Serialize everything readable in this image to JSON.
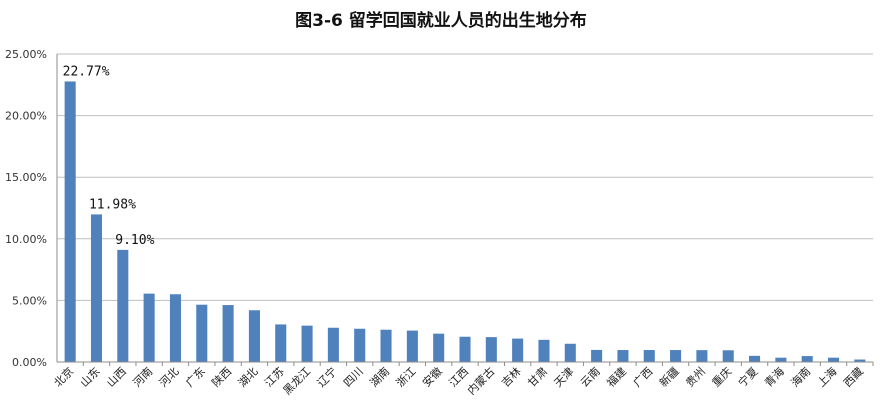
{
  "chart_data": {
    "type": "bar",
    "title": "图3-6 留学回国就业人员的出生地分布",
    "xlabel": "",
    "ylabel": "",
    "ylim": [
      0,
      0.25
    ],
    "ytick_values": [
      0,
      0.05,
      0.1,
      0.15,
      0.2,
      0.25
    ],
    "ytick_labels": [
      "0.00%",
      "5.00%",
      "10.00%",
      "15.00%",
      "20.00%",
      "25.00%"
    ],
    "grid": true,
    "legend": "none",
    "bar_color": "#4f81bd",
    "categories": [
      "北京",
      "山东",
      "山西",
      "河南",
      "河北",
      "广东",
      "陕西",
      "湖北",
      "江苏",
      "黑龙江",
      "辽宁",
      "四川",
      "湖南",
      "浙江",
      "安徽",
      "江西",
      "内蒙古",
      "吉林",
      "甘肃",
      "天津",
      "云南",
      "福建",
      "广西",
      "新疆",
      "贵州",
      "重庆",
      "宁夏",
      "青海",
      "海南",
      "上海",
      "西藏"
    ],
    "values": [
      0.2277,
      0.1198,
      0.091,
      0.0555,
      0.055,
      0.0465,
      0.0462,
      0.042,
      0.0305,
      0.0295,
      0.0278,
      0.027,
      0.0262,
      0.0255,
      0.023,
      0.0205,
      0.0202,
      0.019,
      0.018,
      0.0148,
      0.0098,
      0.0097,
      0.0097,
      0.0097,
      0.0096,
      0.0095,
      0.005,
      0.0035,
      0.0048,
      0.0035,
      0.002
    ],
    "data_labels": [
      {
        "index": 0,
        "text": "22.77%"
      },
      {
        "index": 1,
        "text": "11.98%"
      },
      {
        "index": 2,
        "text": "9.10%"
      }
    ]
  }
}
